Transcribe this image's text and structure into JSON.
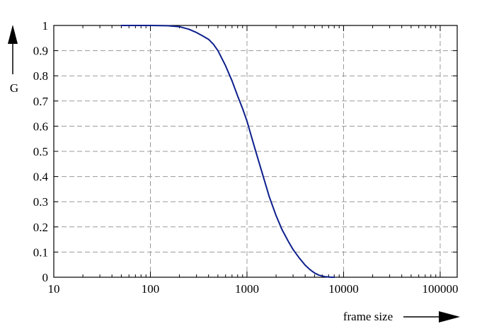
{
  "chart_data": {
    "type": "line",
    "xlabel": "frame size",
    "ylabel": "G",
    "xscale": "log",
    "xlim": [
      10,
      150000
    ],
    "ylim": [
      0,
      1
    ],
    "grid": true,
    "x_ticks": [
      "10",
      "100",
      "1000",
      "10000",
      "100000"
    ],
    "y_ticks": [
      "0",
      "0.1",
      "0.2",
      "0.3",
      "0.4",
      "0.5",
      "0.6",
      "0.7",
      "0.8",
      "0.9",
      "1"
    ],
    "series": [
      {
        "color": "#0d1f8c",
        "x": [
          50,
          100,
          150,
          200,
          250,
          300,
          350,
          400,
          450,
          500,
          600,
          700,
          800,
          900,
          1000,
          1100,
          1200,
          1300,
          1500,
          1700,
          2000,
          2300,
          2700,
          3000,
          3500,
          4000,
          4500,
          5000,
          5500,
          6000,
          6500,
          7000,
          7500,
          8000
        ],
        "y": [
          1.0,
          1.0,
          0.999,
          0.995,
          0.985,
          0.972,
          0.958,
          0.945,
          0.925,
          0.9,
          0.84,
          0.78,
          0.72,
          0.67,
          0.62,
          0.565,
          0.515,
          0.47,
          0.39,
          0.32,
          0.245,
          0.19,
          0.14,
          0.11,
          0.075,
          0.048,
          0.03,
          0.017,
          0.009,
          0.005,
          0.002,
          0.001,
          0.0,
          0.0
        ]
      }
    ]
  }
}
